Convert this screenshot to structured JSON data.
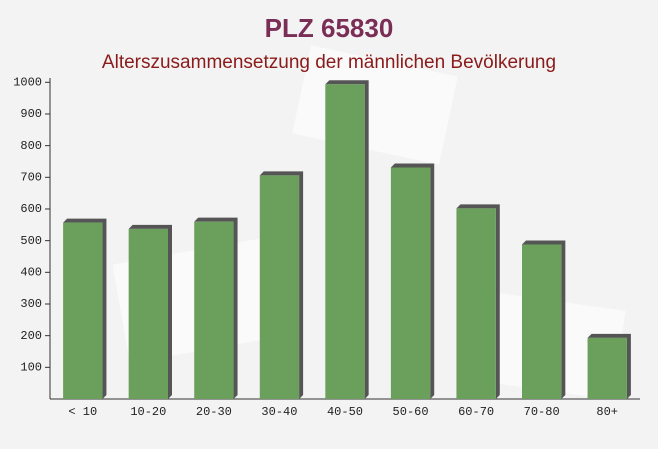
{
  "chart_data": {
    "type": "bar",
    "title": "PLZ 65830",
    "subtitle": "Alterszusammensetzung der männlichen Bevölkerung",
    "categories": [
      "< 10",
      "10-20",
      "20-30",
      "30-40",
      "40-50",
      "50-60",
      "60-70",
      "70-80",
      "80+"
    ],
    "values": [
      557,
      537,
      560,
      706,
      994,
      731,
      602,
      488,
      193
    ],
    "color": "#6a9f5c",
    "ylim": [
      0,
      1000
    ],
    "yticks": [
      100,
      200,
      300,
      400,
      500,
      600,
      700,
      800,
      900,
      1000
    ],
    "grid": false
  }
}
